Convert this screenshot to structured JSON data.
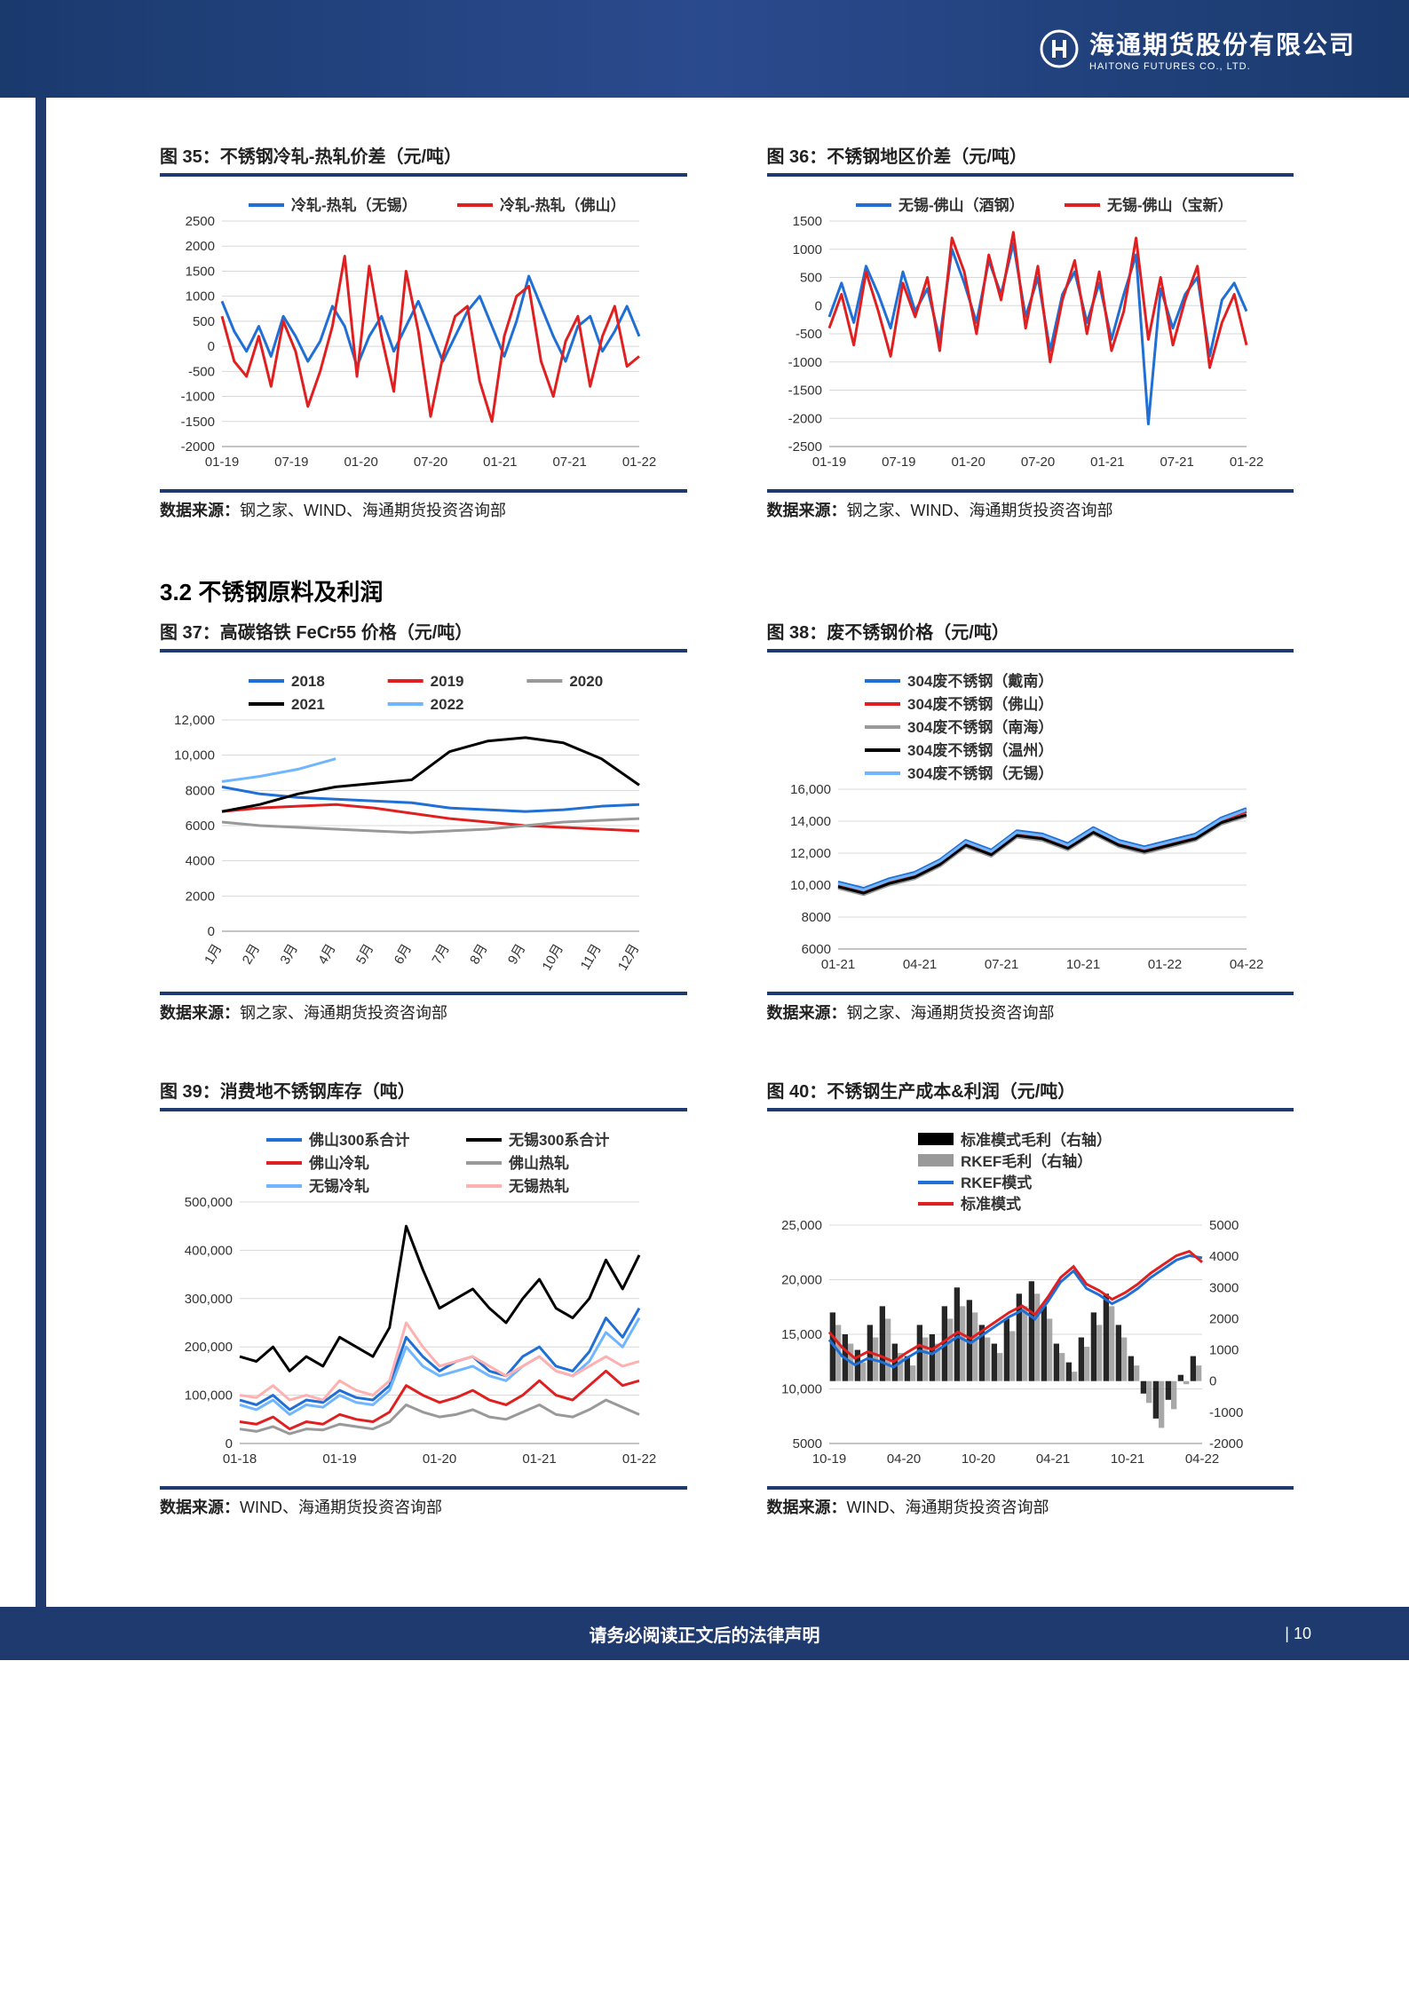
{
  "header": {
    "logo_cn": "海通期货股份有限公司",
    "logo_en": "HAITONG FUTURES CO., LTD."
  },
  "footer": {
    "disclaimer": "请务必阅读正文后的法律声明",
    "page_number": "| 10"
  },
  "section_title": "3.2 不锈钢原料及利润",
  "source_label": "数据来源：",
  "sources": {
    "s1": "钢之家、WIND、海通期货投资咨询部",
    "s2": "钢之家、海通期货投资咨询部",
    "s3": "WIND、海通期货投资咨询部"
  },
  "palette": {
    "blue": "#1f6fd4",
    "red": "#e02020",
    "black": "#000000",
    "gray": "#999999",
    "lightblue": "#70b5ff",
    "pink": "#ffb0b0",
    "darkblue": "#1f3a6e",
    "grid": "#d8d8d8",
    "axis": "#555"
  },
  "charts": {
    "c35": {
      "title": "图 35：不锈钢冷轧-热轧价差（元/吨）",
      "type": "line",
      "legend": [
        {
          "label": "冷轧-热轧（无锡）",
          "color": "#1f6fd4"
        },
        {
          "label": "冷轧-热轧（佛山）",
          "color": "#e02020"
        }
      ],
      "ylim": [
        -2000,
        2500
      ],
      "ytick_step": 500,
      "xticks": [
        "01-19",
        "07-19",
        "01-20",
        "07-20",
        "01-21",
        "07-21",
        "01-22"
      ],
      "series": [
        {
          "color": "#1f6fd4",
          "stroke": 3,
          "data": [
            900,
            300,
            -100,
            400,
            -200,
            600,
            200,
            -300,
            100,
            800,
            400,
            -400,
            200,
            600,
            -100,
            400,
            900,
            300,
            -300,
            200,
            700,
            1000,
            400,
            -200,
            500,
            1400,
            800,
            200,
            -300,
            400,
            600,
            -100,
            300,
            800,
            200
          ]
        },
        {
          "color": "#e02020",
          "stroke": 3,
          "data": [
            600,
            -300,
            -600,
            200,
            -800,
            500,
            -100,
            -1200,
            -500,
            400,
            1800,
            -600,
            1600,
            200,
            -900,
            1500,
            300,
            -1400,
            -200,
            600,
            800,
            -700,
            -1500,
            200,
            1000,
            1200,
            -300,
            -1000,
            100,
            600,
            -800,
            200,
            800,
            -400,
            -200
          ]
        }
      ]
    },
    "c36": {
      "title": "图 36：不锈钢地区价差（元/吨）",
      "type": "line",
      "legend": [
        {
          "label": "无锡-佛山（酒钢）",
          "color": "#1f6fd4"
        },
        {
          "label": "无锡-佛山（宝新）",
          "color": "#e02020"
        }
      ],
      "ylim": [
        -2500,
        1500
      ],
      "ytick_step": 500,
      "xticks": [
        "01-19",
        "07-19",
        "01-20",
        "07-20",
        "01-21",
        "07-21",
        "01-22"
      ],
      "series": [
        {
          "color": "#1f6fd4",
          "stroke": 3,
          "data": [
            -200,
            400,
            -300,
            700,
            200,
            -400,
            600,
            -100,
            300,
            -600,
            1000,
            400,
            -300,
            800,
            200,
            1100,
            -200,
            500,
            -800,
            200,
            600,
            -300,
            400,
            -600,
            200,
            900,
            -2100,
            300,
            -400,
            200,
            500,
            -900,
            100,
            400,
            -100
          ]
        },
        {
          "color": "#e02020",
          "stroke": 3,
          "data": [
            -400,
            200,
            -700,
            600,
            -100,
            -900,
            400,
            -200,
            500,
            -800,
            1200,
            600,
            -500,
            900,
            100,
            1300,
            -400,
            700,
            -1000,
            100,
            800,
            -500,
            600,
            -800,
            -100,
            1200,
            -600,
            500,
            -700,
            100,
            700,
            -1100,
            -300,
            200,
            -700
          ]
        }
      ]
    },
    "c37": {
      "title": "图 37：高碳铬铁 FeCr55 价格（元/吨）",
      "type": "line",
      "legend": [
        {
          "label": "2018",
          "color": "#1f6fd4"
        },
        {
          "label": "2019",
          "color": "#e02020"
        },
        {
          "label": "2020",
          "color": "#999999"
        },
        {
          "label": "2021",
          "color": "#000000"
        },
        {
          "label": "2022",
          "color": "#70b5ff"
        }
      ],
      "ylim": [
        0,
        12000
      ],
      "ytick_step": 2000,
      "xticks": [
        "1月",
        "2月",
        "3月",
        "4月",
        "5月",
        "6月",
        "7月",
        "8月",
        "9月",
        "10月",
        "11月",
        "12月"
      ],
      "xtick_rotate": true,
      "series": [
        {
          "color": "#1f6fd4",
          "stroke": 3,
          "data": [
            8200,
            7800,
            7600,
            7500,
            7400,
            7300,
            7000,
            6900,
            6800,
            6900,
            7100,
            7200
          ]
        },
        {
          "color": "#e02020",
          "stroke": 3,
          "data": [
            6800,
            7000,
            7100,
            7200,
            7000,
            6700,
            6400,
            6200,
            6000,
            5900,
            5800,
            5700
          ]
        },
        {
          "color": "#999999",
          "stroke": 3,
          "data": [
            6200,
            6000,
            5900,
            5800,
            5700,
            5600,
            5700,
            5800,
            6000,
            6200,
            6300,
            6400
          ]
        },
        {
          "color": "#000000",
          "stroke": 3,
          "data": [
            6800,
            7200,
            7800,
            8200,
            8400,
            8600,
            10200,
            10800,
            11000,
            10700,
            9800,
            8300
          ]
        },
        {
          "color": "#70b5ff",
          "stroke": 3,
          "data": [
            8500,
            8800,
            9200,
            9800,
            null,
            null,
            null,
            null,
            null,
            null,
            null,
            null
          ]
        }
      ]
    },
    "c38": {
      "title": "图 38：废不锈钢价格（元/吨）",
      "type": "line",
      "legend": [
        {
          "label": "304废不锈钢（戴南）",
          "color": "#1f6fd4"
        },
        {
          "label": "304废不锈钢（佛山）",
          "color": "#e02020"
        },
        {
          "label": "304废不锈钢（南海）",
          "color": "#999999"
        },
        {
          "label": "304废不锈钢（温州）",
          "color": "#000000"
        },
        {
          "label": "304废不锈钢（无锡）",
          "color": "#70b5ff"
        }
      ],
      "ylim": [
        6000,
        16000
      ],
      "ytick_step": 2000,
      "xticks": [
        "01-21",
        "04-21",
        "07-21",
        "10-21",
        "01-22",
        "04-22"
      ],
      "series": [
        {
          "color": "#1f6fd4",
          "stroke": 3,
          "data": [
            10200,
            9800,
            10400,
            10800,
            11600,
            12800,
            12200,
            13400,
            13200,
            12600,
            13600,
            12800,
            12400,
            12800,
            13200,
            14200,
            14800
          ]
        },
        {
          "color": "#e02020",
          "stroke": 3,
          "data": [
            10000,
            9600,
            10200,
            10600,
            11400,
            12600,
            12000,
            13200,
            13000,
            12400,
            13400,
            12600,
            12200,
            12600,
            13000,
            14000,
            14600
          ]
        },
        {
          "color": "#999999",
          "stroke": 3,
          "data": [
            9800,
            9400,
            10000,
            10400,
            11200,
            12400,
            11800,
            13000,
            12800,
            12200,
            13200,
            12400,
            12000,
            12400,
            12800,
            13800,
            14300
          ]
        },
        {
          "color": "#000000",
          "stroke": 3,
          "data": [
            9900,
            9500,
            10100,
            10500,
            11300,
            12500,
            11900,
            13100,
            12900,
            12300,
            13300,
            12500,
            12100,
            12500,
            12900,
            13900,
            14400
          ]
        },
        {
          "color": "#70b5ff",
          "stroke": 3,
          "data": [
            10100,
            9700,
            10300,
            10700,
            11500,
            12700,
            12100,
            13300,
            13100,
            12500,
            13500,
            12700,
            12300,
            12700,
            13100,
            14100,
            14700
          ]
        }
      ]
    },
    "c39": {
      "title": "图 39：消费地不锈钢库存（吨）",
      "type": "line",
      "legend": [
        {
          "label": "佛山300系合计",
          "color": "#1f6fd4"
        },
        {
          "label": "无锡300系合计",
          "color": "#000000"
        },
        {
          "label": "佛山冷轧",
          "color": "#e02020"
        },
        {
          "label": "佛山热轧",
          "color": "#999999"
        },
        {
          "label": "无锡冷轧",
          "color": "#70b5ff"
        },
        {
          "label": "无锡热轧",
          "color": "#ffb0b0"
        }
      ],
      "ylim": [
        0,
        500000
      ],
      "ytick_step": 100000,
      "xticks": [
        "01-18",
        "01-19",
        "01-20",
        "01-21",
        "01-22"
      ],
      "series": [
        {
          "color": "#000000",
          "stroke": 3,
          "data": [
            180000,
            170000,
            200000,
            150000,
            180000,
            160000,
            220000,
            200000,
            180000,
            240000,
            450000,
            360000,
            280000,
            300000,
            320000,
            280000,
            250000,
            300000,
            340000,
            280000,
            260000,
            300000,
            380000,
            320000,
            390000
          ]
        },
        {
          "color": "#1f6fd4",
          "stroke": 3,
          "data": [
            90000,
            80000,
            100000,
            70000,
            90000,
            85000,
            110000,
            95000,
            90000,
            120000,
            220000,
            180000,
            150000,
            170000,
            180000,
            150000,
            140000,
            180000,
            200000,
            160000,
            150000,
            190000,
            260000,
            220000,
            280000
          ]
        },
        {
          "color": "#70b5ff",
          "stroke": 3,
          "data": [
            80000,
            70000,
            90000,
            60000,
            80000,
            75000,
            100000,
            85000,
            80000,
            110000,
            200000,
            160000,
            140000,
            150000,
            160000,
            140000,
            130000,
            160000,
            180000,
            150000,
            140000,
            170000,
            230000,
            200000,
            260000
          ]
        },
        {
          "color": "#ffb0b0",
          "stroke": 3,
          "data": [
            100000,
            95000,
            120000,
            90000,
            100000,
            90000,
            130000,
            110000,
            100000,
            130000,
            250000,
            200000,
            160000,
            170000,
            180000,
            160000,
            140000,
            160000,
            180000,
            150000,
            140000,
            160000,
            180000,
            160000,
            170000
          ]
        },
        {
          "color": "#e02020",
          "stroke": 3,
          "data": [
            45000,
            40000,
            55000,
            30000,
            45000,
            40000,
            60000,
            50000,
            45000,
            65000,
            120000,
            100000,
            85000,
            95000,
            110000,
            90000,
            80000,
            100000,
            130000,
            100000,
            90000,
            120000,
            150000,
            120000,
            130000
          ]
        },
        {
          "color": "#999999",
          "stroke": 3,
          "data": [
            30000,
            25000,
            35000,
            20000,
            30000,
            28000,
            40000,
            35000,
            30000,
            45000,
            80000,
            65000,
            55000,
            60000,
            70000,
            55000,
            50000,
            65000,
            80000,
            60000,
            55000,
            70000,
            90000,
            75000,
            60000
          ]
        }
      ]
    },
    "c40": {
      "title": "图 40：不锈钢生产成本&利润（元/吨）",
      "type": "combo",
      "legend": [
        {
          "label": "标准模式毛利（右轴）",
          "color": "#000000",
          "kind": "bar"
        },
        {
          "label": "RKEF毛利（右轴）",
          "color": "#999999",
          "kind": "bar"
        },
        {
          "label": "RKEF模式",
          "color": "#1f6fd4",
          "kind": "line"
        },
        {
          "label": "标准模式",
          "color": "#e02020",
          "kind": "line"
        }
      ],
      "ylim": [
        5000,
        25000
      ],
      "ytick_step": 5000,
      "ylim2": [
        -2000,
        5000
      ],
      "ytick2_step": 1000,
      "xticks": [
        "10-19",
        "04-20",
        "10-20",
        "04-21",
        "10-21",
        "04-22"
      ],
      "bar_series": [
        {
          "color": "#000000",
          "data": [
            2200,
            1500,
            1000,
            1800,
            2400,
            1200,
            800,
            1800,
            1500,
            2400,
            3000,
            2600,
            1800,
            1200,
            2000,
            2800,
            3200,
            2400,
            1200,
            600,
            1400,
            2200,
            2800,
            1800,
            800,
            -400,
            -1200,
            -600,
            200,
            800
          ]
        },
        {
          "color": "#999999",
          "data": [
            1800,
            1200,
            600,
            1400,
            2000,
            900,
            500,
            1400,
            1200,
            2000,
            2400,
            2200,
            1400,
            900,
            1600,
            2400,
            2800,
            2000,
            900,
            300,
            1100,
            1800,
            2400,
            1400,
            500,
            -700,
            -1500,
            -900,
            -100,
            500
          ]
        }
      ],
      "line_series": [
        {
          "color": "#1f6fd4",
          "stroke": 3,
          "data": [
            14500,
            13000,
            12200,
            12800,
            12500,
            12000,
            12800,
            13500,
            13200,
            14000,
            14800,
            14200,
            15000,
            15800,
            16600,
            17200,
            16400,
            18000,
            19800,
            20800,
            19200,
            18600,
            17800,
            18400,
            19200,
            20200,
            21000,
            21800,
            22200,
            22000
          ]
        },
        {
          "color": "#e02020",
          "stroke": 3,
          "data": [
            15200,
            13800,
            12800,
            13400,
            13000,
            12500,
            13300,
            14000,
            13600,
            14400,
            15200,
            14600,
            15400,
            16200,
            17000,
            17600,
            16800,
            18400,
            20200,
            21200,
            19600,
            19000,
            18200,
            18800,
            19600,
            20600,
            21400,
            22200,
            22600,
            21600
          ]
        }
      ]
    }
  }
}
